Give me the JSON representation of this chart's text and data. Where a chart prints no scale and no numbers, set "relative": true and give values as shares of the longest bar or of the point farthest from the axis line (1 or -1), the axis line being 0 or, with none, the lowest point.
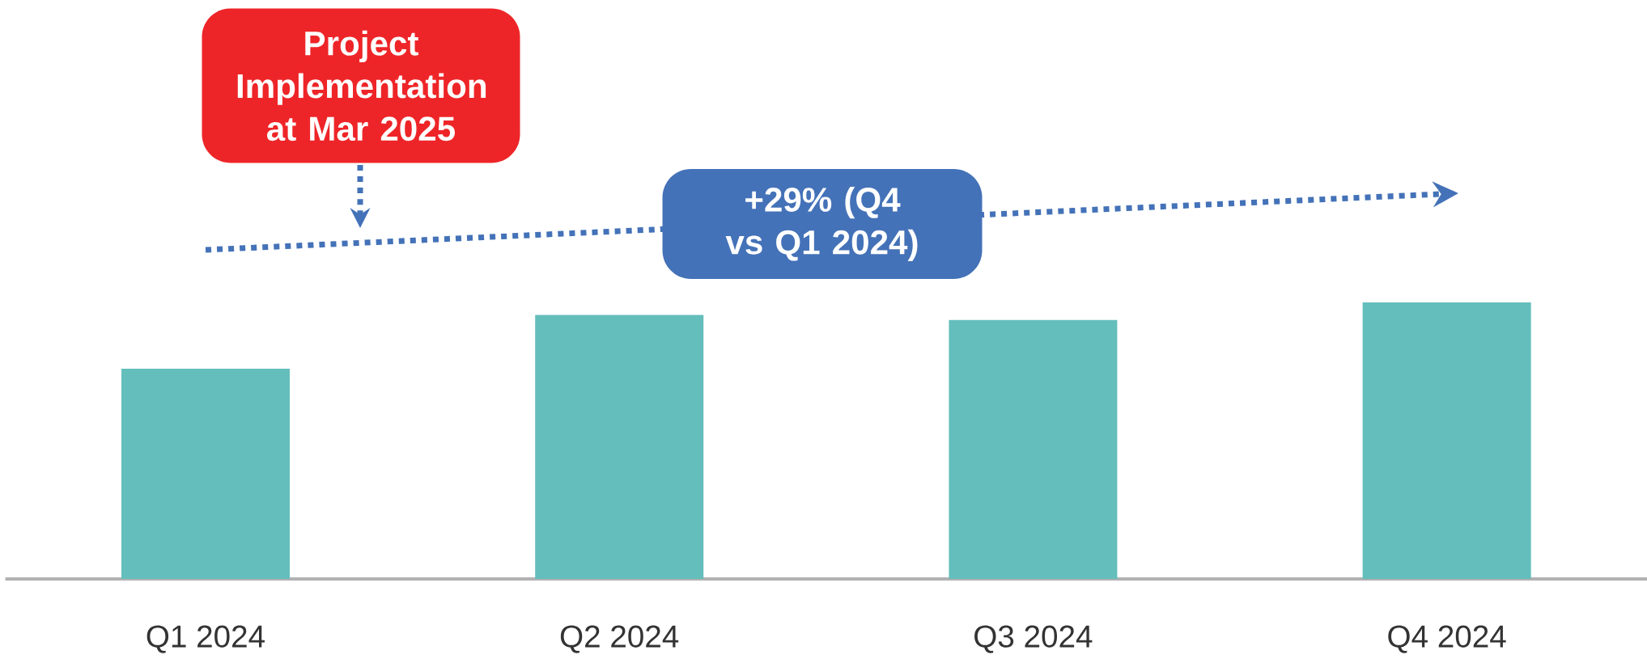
{
  "chart_data": {
    "type": "bar",
    "categories": [
      "Q1 2024",
      "Q2 2024",
      "Q3 2024",
      "Q4 2024"
    ],
    "values": [
      0.76,
      0.955,
      0.936,
      1
    ],
    "color": "#64bebc",
    "relative": true,
    "annotations": [
      "Project Implementation at Mar 2025",
      "+29% (Q4 vs Q1 2024)"
    ]
  }
}
